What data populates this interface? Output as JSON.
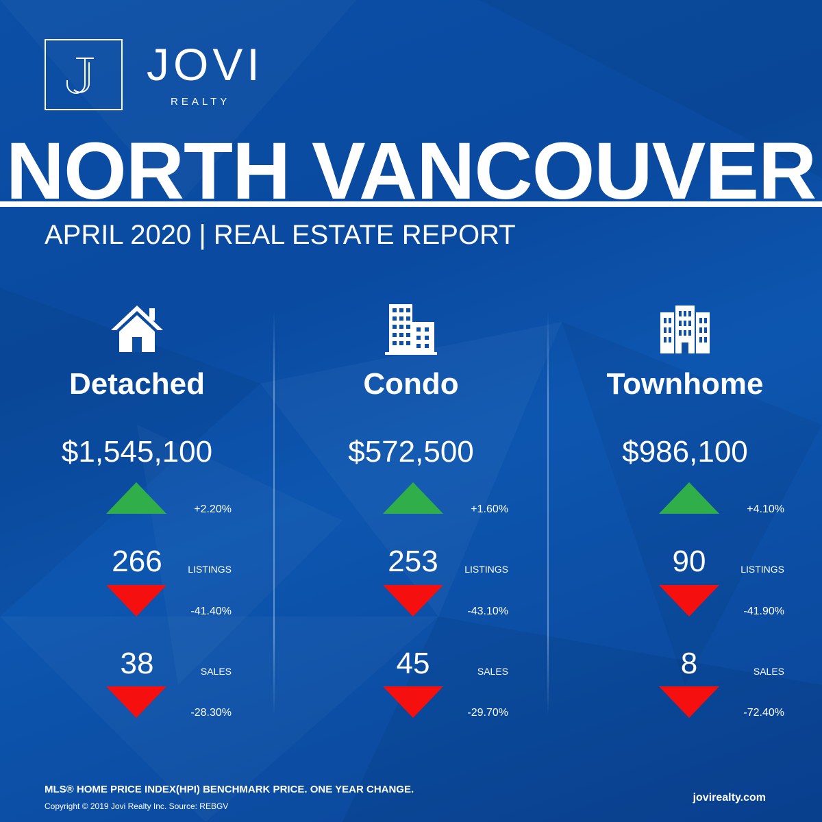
{
  "brand": {
    "name": "JOVI",
    "tagline": "REALTY",
    "logo_letter": "J"
  },
  "title": "NORTH VANCOUVER",
  "subtitle": "APRIL 2020 | REAL ESTATE REPORT",
  "colors": {
    "background": "#0b4fa6",
    "up": "#2fae4a",
    "down": "#f50f0f",
    "text": "#ffffff"
  },
  "columns": [
    {
      "icon": "house-icon",
      "type": "Detached",
      "price": "$1,545,100",
      "price_change": "+2.20%",
      "listings": {
        "value": "266",
        "label": "LISTINGS",
        "change": "-41.40%"
      },
      "sales": {
        "value": "38",
        "label": "SALES",
        "change": "-28.30%"
      }
    },
    {
      "icon": "condo-building-icon",
      "type": "Condo",
      "price": "$572,500",
      "price_change": "+1.60%",
      "listings": {
        "value": "253",
        "label": "LISTINGS",
        "change": "-43.10%"
      },
      "sales": {
        "value": "45",
        "label": "SALES",
        "change": "-29.70%"
      }
    },
    {
      "icon": "townhome-building-icon",
      "type": "Townhome",
      "price": "$986,100",
      "price_change": "+4.10%",
      "listings": {
        "value": "90",
        "label": "LISTINGS",
        "change": "-41.90%"
      },
      "sales": {
        "value": "8",
        "label": "SALES",
        "change": "-72.40%"
      }
    }
  ],
  "footer": {
    "note": "MLS® HOME PRICE INDEX(HPI) BENCHMARK PRICE. ONE YEAR CHANGE.",
    "copyright": "Copyright © 2019 Jovi Realty Inc. Source: REBGV",
    "website": "jovirealty.com"
  }
}
